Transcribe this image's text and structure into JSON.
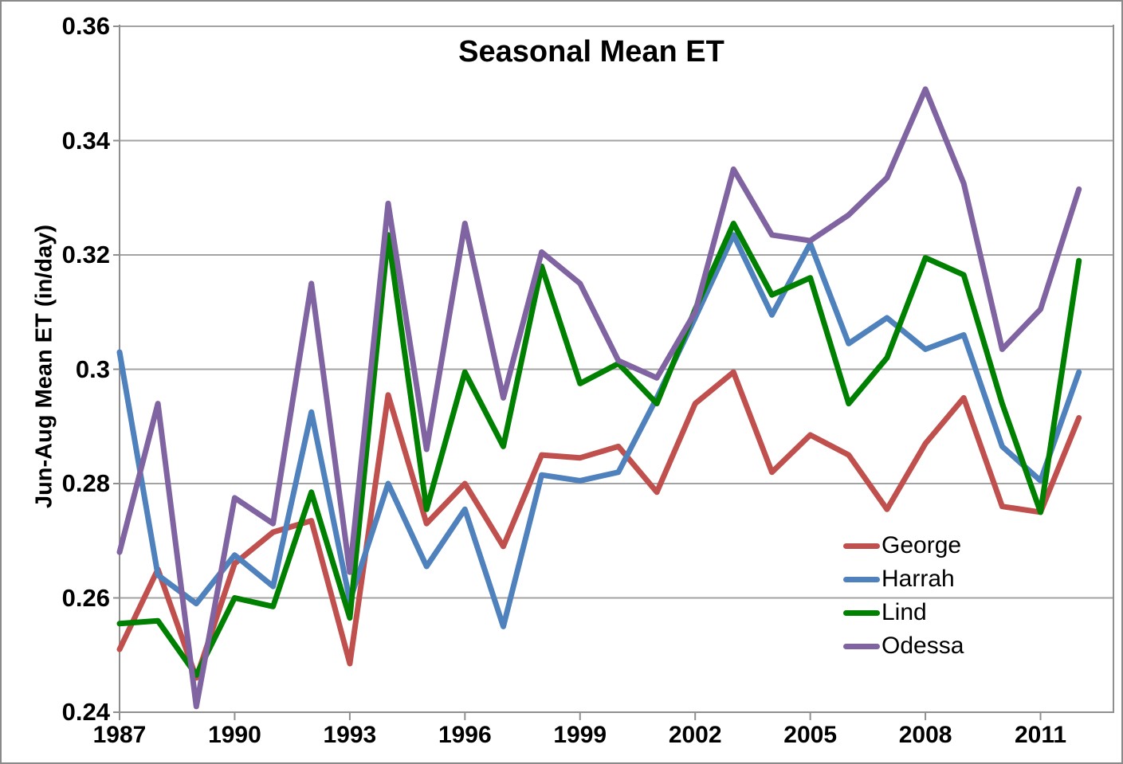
{
  "window": {
    "background": "#ffffff",
    "border_color": "#8a8a8a"
  },
  "chart_data": {
    "type": "line",
    "title": "Seasonal Mean ET",
    "ylabel": "Jun-Aug Mean ET (in/day)",
    "xlabel": "",
    "x": [
      1987,
      1988,
      1989,
      1990,
      1991,
      1992,
      1993,
      1994,
      1995,
      1996,
      1997,
      1998,
      1999,
      2000,
      2001,
      2002,
      2003,
      2004,
      2005,
      2006,
      2007,
      2008,
      2009,
      2010,
      2011,
      2012
    ],
    "series": [
      {
        "name": "George",
        "color": "#C0504D",
        "values": [
          0.251,
          0.265,
          0.246,
          0.266,
          0.2715,
          0.2735,
          0.2485,
          0.2955,
          0.273,
          0.28,
          0.269,
          0.285,
          0.2845,
          0.2865,
          0.2785,
          0.294,
          0.2995,
          0.282,
          0.2885,
          0.285,
          0.2755,
          0.287,
          0.295,
          0.276,
          0.275,
          0.2915
        ]
      },
      {
        "name": "Harrah",
        "color": "#4F81BD",
        "values": [
          0.303,
          0.264,
          0.259,
          0.2675,
          0.262,
          0.2925,
          0.2595,
          0.28,
          0.2655,
          0.2755,
          0.255,
          0.2815,
          0.2805,
          0.282,
          0.295,
          0.309,
          0.3235,
          0.3095,
          0.322,
          0.3045,
          0.309,
          0.3035,
          0.306,
          0.2865,
          0.2805,
          0.2995
        ]
      },
      {
        "name": "Lind",
        "color": "#008000",
        "values": [
          0.2555,
          0.256,
          0.2465,
          0.26,
          0.2585,
          0.2785,
          0.2565,
          0.3235,
          0.2755,
          0.2995,
          0.2865,
          0.318,
          0.2975,
          0.301,
          0.294,
          0.3105,
          0.3255,
          0.313,
          0.316,
          0.294,
          0.302,
          0.3195,
          0.3165,
          0.294,
          0.275,
          0.319
        ]
      },
      {
        "name": "Odessa",
        "color": "#8064A2",
        "values": [
          0.268,
          0.294,
          0.241,
          0.2775,
          0.273,
          0.315,
          0.2645,
          0.329,
          0.286,
          0.3255,
          0.295,
          0.3205,
          0.315,
          0.3015,
          0.2985,
          0.31,
          0.335,
          0.3235,
          0.3225,
          0.327,
          0.3335,
          0.349,
          0.3325,
          0.3035,
          0.3105,
          0.3315
        ]
      }
    ],
    "ylim": [
      0.24,
      0.36
    ],
    "xlim": [
      1987,
      2012.9
    ],
    "y_ticks": [
      {
        "v": 0.36,
        "label": "0.36"
      },
      {
        "v": 0.34,
        "label": "0.34"
      },
      {
        "v": 0.32,
        "label": "0.32"
      },
      {
        "v": 0.3,
        "label": "0.3"
      },
      {
        "v": 0.28,
        "label": "0.28"
      },
      {
        "v": 0.26,
        "label": "0.26"
      },
      {
        "v": 0.24,
        "label": "0.24"
      }
    ],
    "x_ticks": [
      {
        "v": 1987,
        "label": "1987"
      },
      {
        "v": 1990,
        "label": "1990"
      },
      {
        "v": 1993,
        "label": "1993"
      },
      {
        "v": 1996,
        "label": "1996"
      },
      {
        "v": 1999,
        "label": "1999"
      },
      {
        "v": 2002,
        "label": "2002"
      },
      {
        "v": 2005,
        "label": "2005"
      },
      {
        "v": 2008,
        "label": "2008"
      },
      {
        "v": 2011,
        "label": "2011"
      }
    ],
    "grid": true,
    "gridline_color": "#A3A3A3",
    "axis_color": "#8F8F8F",
    "line_width": 7,
    "legend_position": "inside-right-middle"
  }
}
